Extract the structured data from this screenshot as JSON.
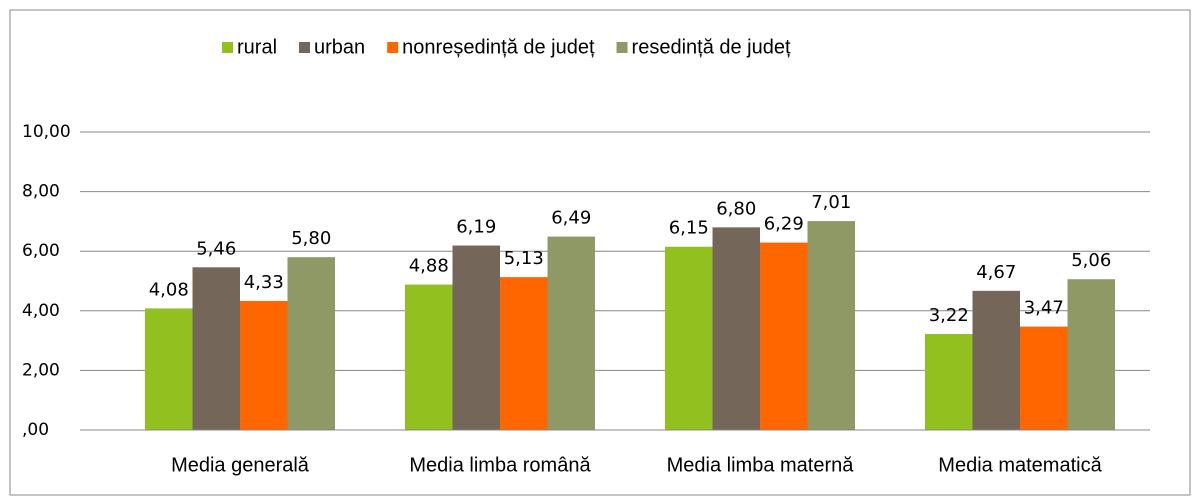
{
  "chart_data": {
    "type": "bar",
    "categories": [
      "Media generală",
      "Media limba română",
      "Media limba maternă",
      "Media matematică"
    ],
    "series": [
      {
        "name": "rural",
        "color": "#92c01f",
        "values": [
          4.08,
          4.88,
          6.15,
          3.22
        ],
        "value_labels": [
          "4,08",
          "4,88",
          "6,15",
          "3,22"
        ]
      },
      {
        "name": "urban",
        "color": "#74675a",
        "values": [
          5.46,
          6.19,
          6.8,
          4.67
        ],
        "value_labels": [
          "5,46",
          "6,19",
          "6,80",
          "4,67"
        ]
      },
      {
        "name": "nonreședință de județ",
        "color": "#ff6600",
        "values": [
          4.33,
          5.13,
          6.29,
          3.47
        ],
        "value_labels": [
          "4,33",
          "5,13",
          "6,29",
          "3,47"
        ]
      },
      {
        "name": "resedință de județ",
        "color": "#8f9966",
        "values": [
          5.8,
          6.49,
          7.01,
          5.06
        ],
        "value_labels": [
          "5,80",
          "6,49",
          "7,01",
          "5,06"
        ]
      }
    ],
    "ylim": [
      0,
      10
    ],
    "yticks": [
      {
        "value": 0,
        "label": ",00"
      },
      {
        "value": 2,
        "label": "2,00"
      },
      {
        "value": 4,
        "label": "4,00"
      },
      {
        "value": 6,
        "label": "6,00"
      },
      {
        "value": 8,
        "label": "8,00"
      },
      {
        "value": 10,
        "label": "10,00"
      }
    ],
    "grid": true,
    "legend": "top"
  }
}
